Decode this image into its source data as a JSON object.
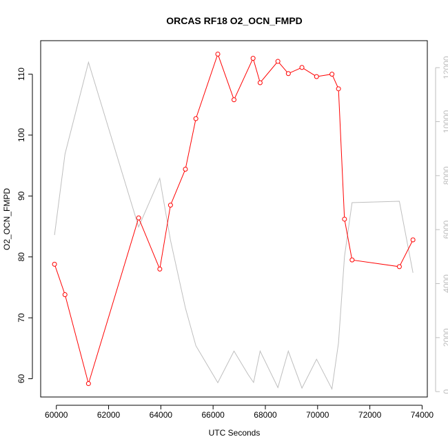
{
  "chart_data": {
    "type": "line",
    "title": "ORCAS RF18 O2_OCN_FMPD",
    "xlabel": "UTC Seconds",
    "ylabel": "O2_OCN_FMPD",
    "xlim": [
      59400,
      74200
    ],
    "ylim": [
      57,
      115.5
    ],
    "y2lim": [
      -200,
      13000
    ],
    "xticks": [
      60000,
      62000,
      64000,
      66000,
      68000,
      70000,
      72000,
      74000
    ],
    "yticks": [
      60,
      70,
      80,
      90,
      100,
      110
    ],
    "y2ticks": [
      0,
      2000,
      4000,
      6000,
      8000,
      10000,
      12000
    ],
    "series": [
      {
        "axis": "left",
        "color": "#ff0000",
        "markers": true,
        "x": [
          59930,
          60330,
          61230,
          63150,
          63960,
          64370,
          64940,
          65340,
          66180,
          66800,
          67530,
          67800,
          68480,
          68880,
          69400,
          69960,
          70550,
          70800,
          71030,
          71320,
          73130,
          73650
        ],
        "y": [
          78.8,
          73.8,
          59.2,
          86.4,
          78.0,
          88.5,
          94.4,
          102.7,
          113.3,
          105.8,
          112.6,
          108.6,
          112.1,
          110.1,
          111.1,
          109.6,
          110.0,
          107.6,
          86.2,
          79.5,
          78.4,
          82.8
        ]
      },
      {
        "axis": "right",
        "color": "#bebebe",
        "markers": false,
        "x": [
          59930,
          60330,
          61230,
          63150,
          63960,
          64370,
          64940,
          65340,
          66180,
          66800,
          67350,
          67550,
          67800,
          68480,
          68880,
          69400,
          69960,
          70550,
          70800,
          71030,
          71320,
          73130,
          73650
        ],
        "y": [
          5800,
          8800,
          12200,
          6100,
          7900,
          5600,
          3100,
          1700,
          330,
          1500,
          620,
          340,
          1500,
          150,
          1500,
          130,
          1200,
          100,
          1800,
          5000,
          7000,
          7050,
          4400
        ]
      }
    ]
  }
}
